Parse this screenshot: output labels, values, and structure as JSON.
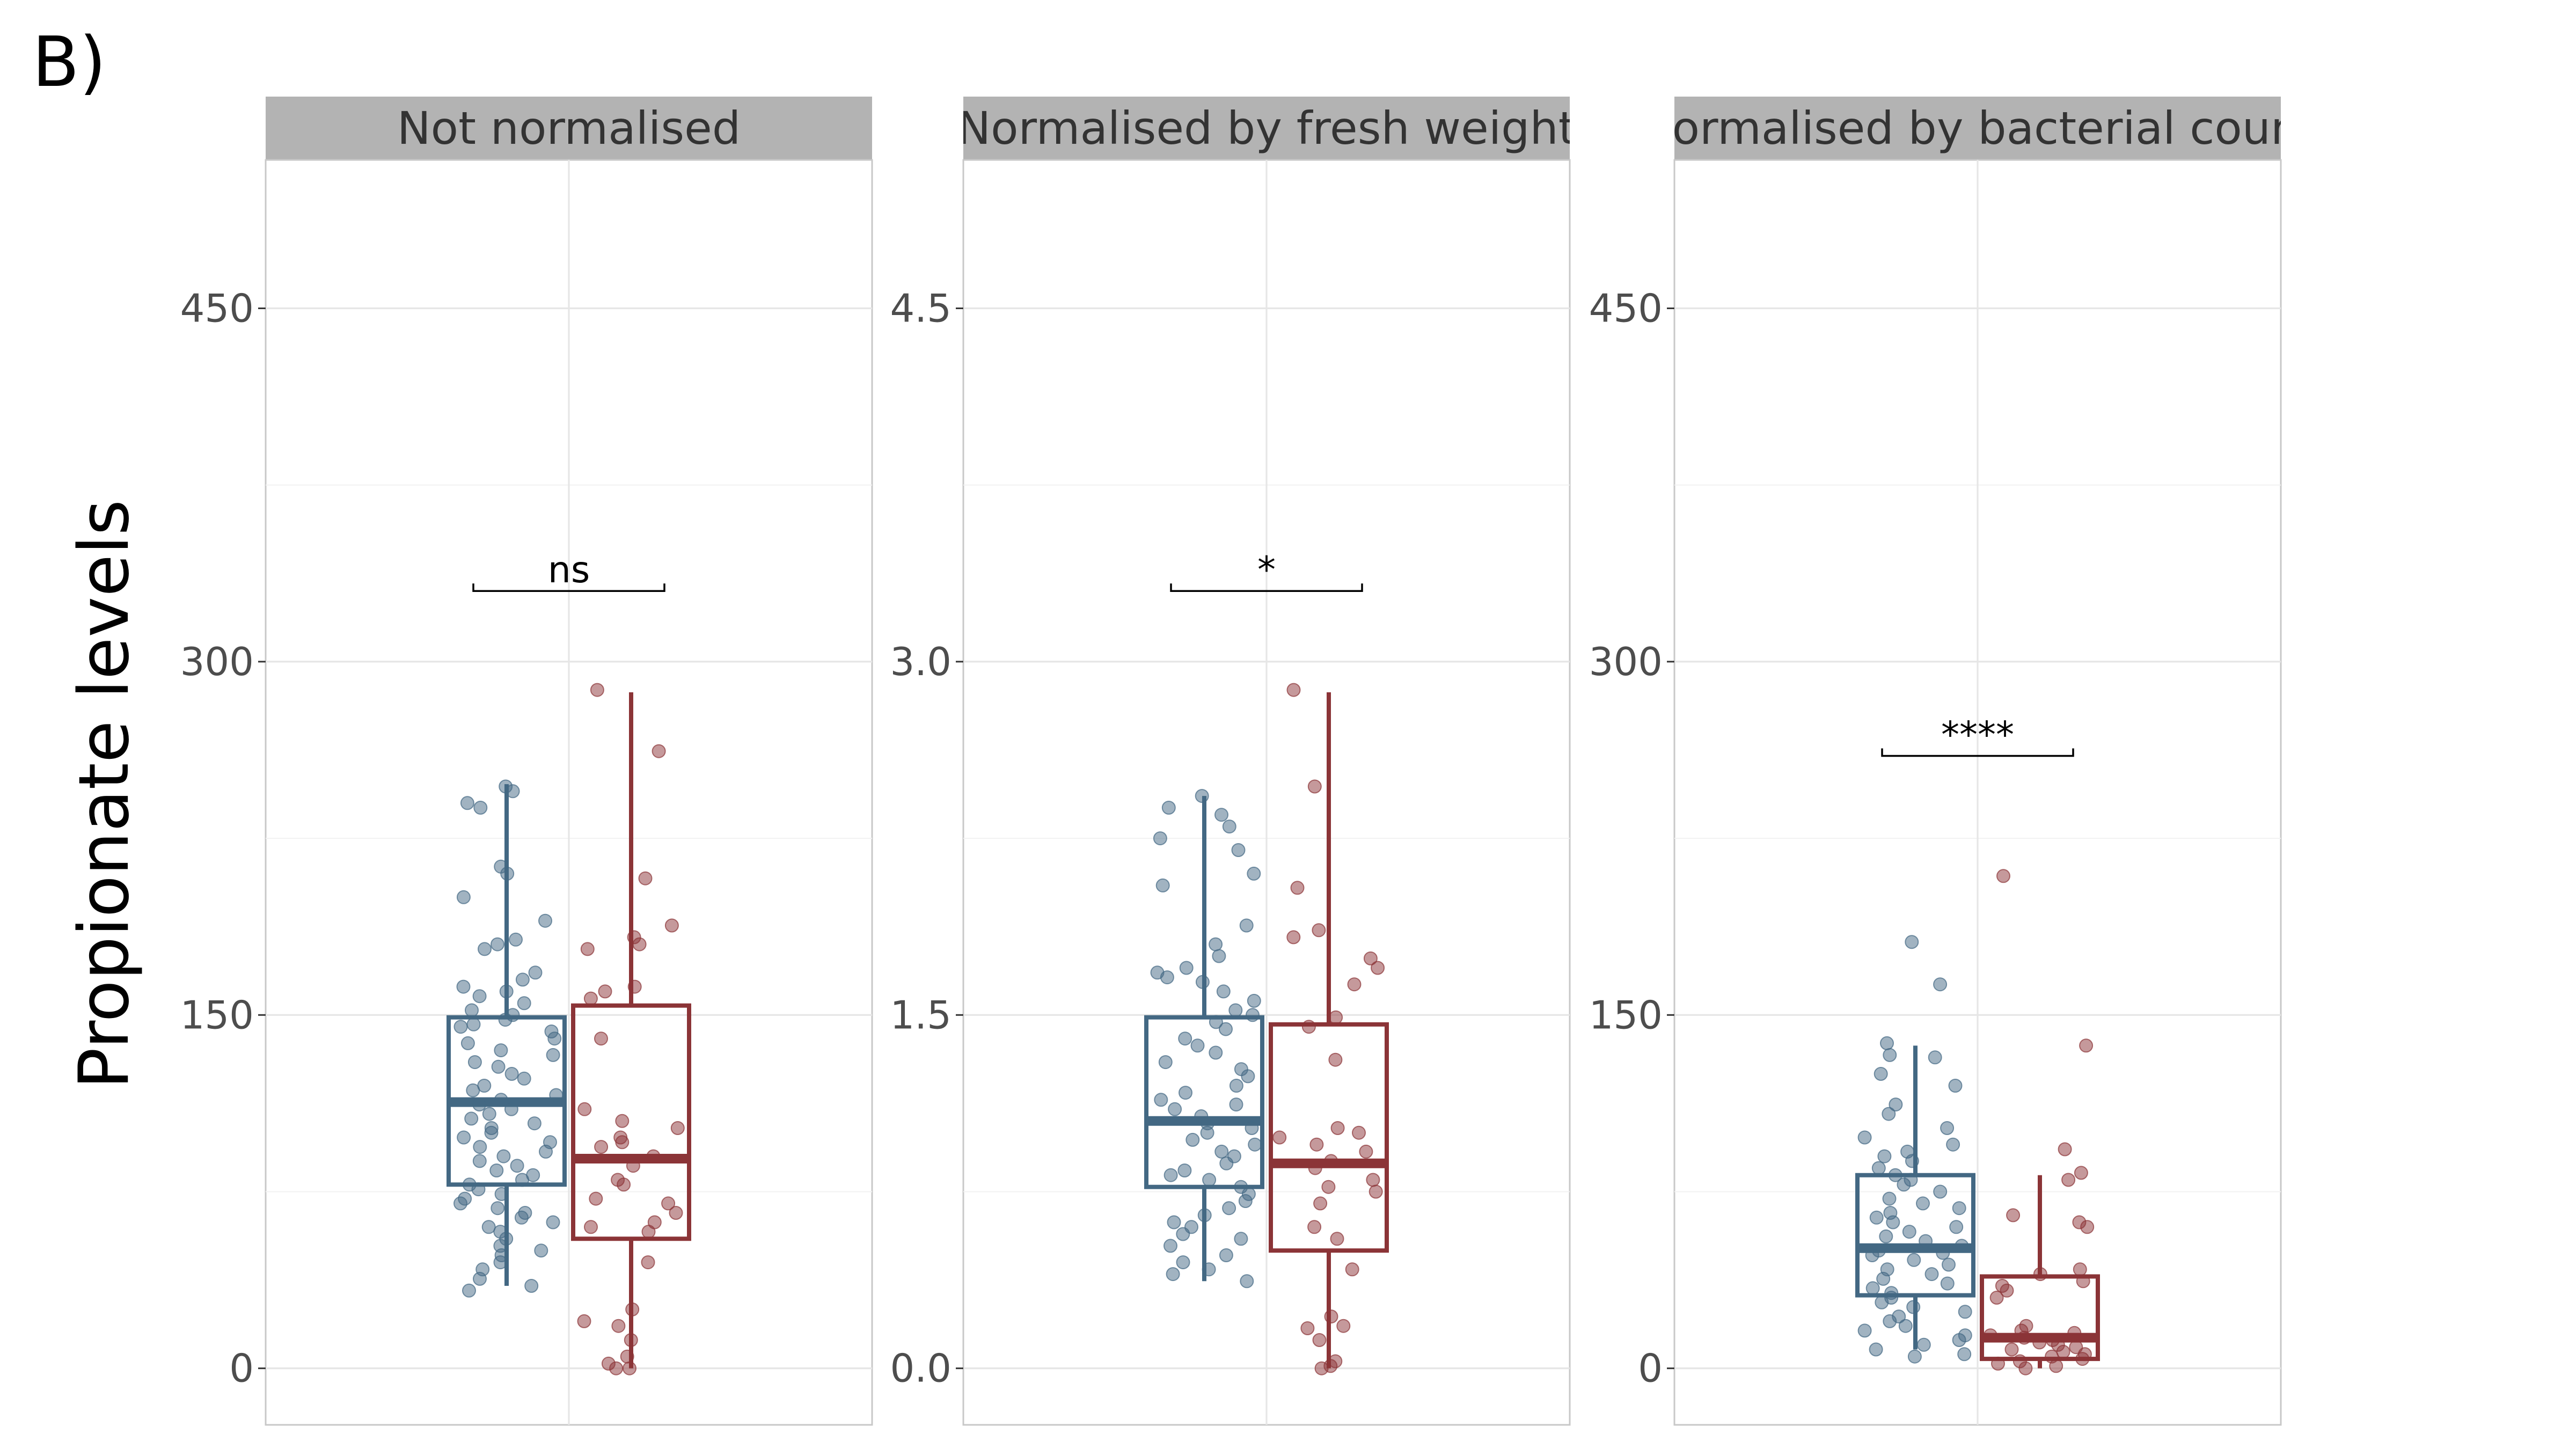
{
  "panel_tag": "B)",
  "colors": {
    "group1": "#436883",
    "group2": "#8b3437",
    "strip": "#b3b3b3",
    "grid": "#e6e6e6"
  },
  "chart_data": [
    {
      "type": "box",
      "title": "Not normalised",
      "ylabel": "Propionate levels",
      "ylim": [
        -24,
        513
      ],
      "yticks": [
        0,
        150,
        300,
        450
      ],
      "ytick_labels": [
        "0",
        "150",
        "300",
        "450"
      ],
      "grid": true,
      "significance": {
        "label": "ns",
        "y": 330
      },
      "groups": [
        {
          "color": "#436883",
          "whisker_low": 35,
          "q1": 78,
          "median": 113,
          "q3": 149,
          "whisker_high": 248,
          "points": [
            247,
            245,
            240,
            238,
            213,
            210,
            200,
            190,
            182,
            180,
            178,
            168,
            165,
            162,
            160,
            158,
            155,
            152,
            150,
            148,
            146,
            145,
            143,
            140,
            138,
            135,
            133,
            130,
            128,
            125,
            123,
            120,
            118,
            116,
            114,
            112,
            110,
            108,
            106,
            104,
            102,
            100,
            98,
            96,
            94,
            92,
            90,
            88,
            86,
            84,
            82,
            80,
            78,
            76,
            74,
            72,
            70,
            68,
            66,
            64,
            62,
            60,
            58,
            55,
            52,
            50,
            48,
            45,
            42,
            38,
            35,
            33
          ]
        },
        {
          "color": "#8b3437",
          "whisker_low": 0,
          "q1": 55,
          "median": 89,
          "q3": 154,
          "whisker_high": 287,
          "points": [
            288,
            262,
            208,
            188,
            183,
            180,
            178,
            162,
            160,
            157,
            140,
            110,
            105,
            102,
            98,
            96,
            94,
            90,
            86,
            80,
            78,
            72,
            70,
            66,
            62,
            60,
            58,
            45,
            25,
            20,
            18,
            12,
            5,
            2,
            0,
            0
          ]
        }
      ]
    },
    {
      "type": "box",
      "title": "Normalised by fresh weight",
      "ylabel": "",
      "ylim": [
        -0.24,
        5.13
      ],
      "yticks": [
        0,
        1.5,
        3.0,
        4.5
      ],
      "ytick_labels": [
        "0.0",
        "1.5",
        "3.0",
        "4.5"
      ],
      "grid": true,
      "significance": {
        "label": "*",
        "y": 3.3
      },
      "groups": [
        {
          "color": "#436883",
          "whisker_low": 0.37,
          "q1": 0.77,
          "median": 1.05,
          "q3": 1.49,
          "whisker_high": 2.43,
          "points": [
            2.43,
            2.38,
            2.35,
            2.3,
            2.25,
            2.2,
            2.1,
            2.05,
            1.88,
            1.8,
            1.75,
            1.7,
            1.68,
            1.66,
            1.64,
            1.6,
            1.56,
            1.52,
            1.5,
            1.47,
            1.44,
            1.4,
            1.37,
            1.34,
            1.3,
            1.27,
            1.24,
            1.2,
            1.17,
            1.14,
            1.12,
            1.1,
            1.07,
            1.04,
            1.02,
            1.0,
            0.97,
            0.95,
            0.92,
            0.9,
            0.87,
            0.84,
            0.82,
            0.8,
            0.77,
            0.74,
            0.71,
            0.68,
            0.65,
            0.62,
            0.6,
            0.57,
            0.55,
            0.52,
            0.48,
            0.45,
            0.42,
            0.4,
            0.37
          ]
        },
        {
          "color": "#8b3437",
          "whisker_low": 0.0,
          "q1": 0.5,
          "median": 0.87,
          "q3": 1.46,
          "whisker_high": 2.87,
          "points": [
            2.88,
            2.47,
            2.04,
            1.86,
            1.83,
            1.74,
            1.7,
            1.63,
            1.49,
            1.45,
            1.31,
            1.02,
            1.0,
            0.98,
            0.95,
            0.92,
            0.88,
            0.85,
            0.8,
            0.77,
            0.75,
            0.7,
            0.6,
            0.55,
            0.42,
            0.22,
            0.18,
            0.17,
            0.12,
            0.03,
            0.01,
            0.0
          ]
        }
      ]
    },
    {
      "type": "box",
      "title": "Normalised by bacterial count",
      "ylabel": "",
      "ylim": [
        -24,
        513
      ],
      "yticks": [
        0,
        150,
        300,
        450
      ],
      "ytick_labels": [
        "0",
        "150",
        "300",
        "450"
      ],
      "grid": true,
      "significance": {
        "label": "****",
        "y": 260
      },
      "groups": [
        {
          "color": "#436883",
          "whisker_low": 8,
          "q1": 31,
          "median": 51,
          "q3": 82,
          "whisker_high": 137,
          "points": [
            181,
            163,
            138,
            133,
            132,
            125,
            120,
            112,
            108,
            102,
            98,
            95,
            92,
            90,
            88,
            85,
            82,
            80,
            78,
            75,
            72,
            70,
            68,
            66,
            64,
            62,
            60,
            58,
            56,
            54,
            52,
            50,
            49,
            48,
            46,
            44,
            42,
            40,
            38,
            36,
            34,
            32,
            30,
            28,
            26,
            24,
            22,
            20,
            18,
            16,
            14,
            12,
            10,
            8,
            6,
            5
          ]
        },
        {
          "color": "#8b3437",
          "whisker_low": 0,
          "q1": 4,
          "median": 13,
          "q3": 39,
          "whisker_high": 82,
          "points": [
            209,
            137,
            93,
            83,
            80,
            65,
            62,
            60,
            42,
            40,
            37,
            35,
            33,
            30,
            18,
            16,
            15,
            14,
            13,
            12,
            11,
            10,
            9,
            8,
            7,
            6,
            5,
            4,
            3,
            2,
            1,
            0
          ]
        }
      ]
    }
  ]
}
